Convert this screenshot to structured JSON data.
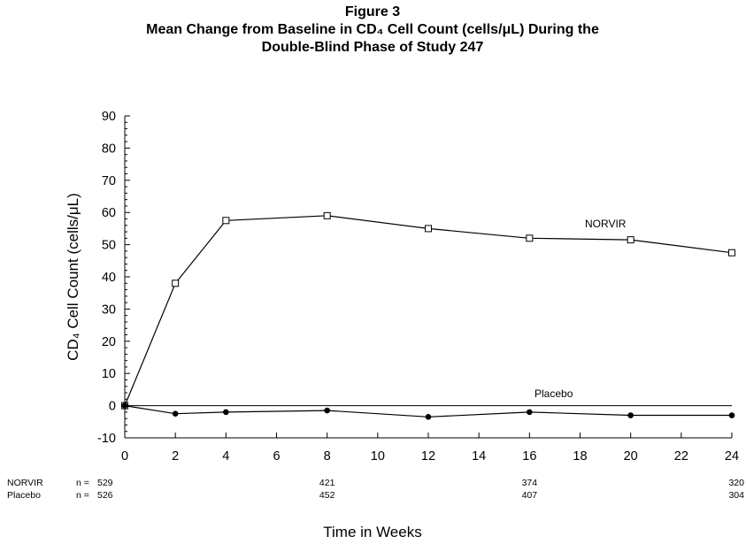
{
  "chart_data": {
    "type": "line",
    "title_lines": [
      "Figure 3",
      "Mean Change from Baseline in CD₄ Cell Count (cells/μL) During the",
      "Double-Blind Phase of Study 247"
    ],
    "xlabel": "Time in Weeks",
    "ylabel": "CD₄ Cell Count (cells/μL)",
    "xlim": [
      0,
      24
    ],
    "ylim": [
      -10,
      90
    ],
    "x_ticks": [
      0,
      2,
      4,
      6,
      8,
      10,
      12,
      14,
      16,
      18,
      20,
      22,
      24
    ],
    "y_ticks": [
      -10,
      0,
      10,
      20,
      30,
      40,
      50,
      60,
      70,
      80,
      90
    ],
    "grid": false,
    "reference_line_y": 0,
    "series": [
      {
        "name": "NORVIR",
        "marker": "open-square",
        "x": [
          0,
          2,
          4,
          8,
          12,
          16,
          20,
          24
        ],
        "y": [
          0,
          38,
          57.5,
          59,
          55,
          52,
          51.5,
          47.5
        ]
      },
      {
        "name": "Placebo",
        "marker": "filled-circle",
        "x": [
          0,
          2,
          4,
          8,
          12,
          16,
          20,
          24
        ],
        "y": [
          0,
          -2.5,
          -2,
          -1.5,
          -3.5,
          -2,
          -3,
          -3
        ]
      }
    ],
    "n_table": {
      "prefix": "n =",
      "weeks": [
        0,
        8,
        16,
        24
      ],
      "rows": [
        {
          "label": "NORVIR",
          "values": [
            "529",
            "421",
            "374",
            "320"
          ]
        },
        {
          "label": "Placebo",
          "values": [
            "526",
            "452",
            "407",
            "304"
          ]
        }
      ]
    }
  }
}
